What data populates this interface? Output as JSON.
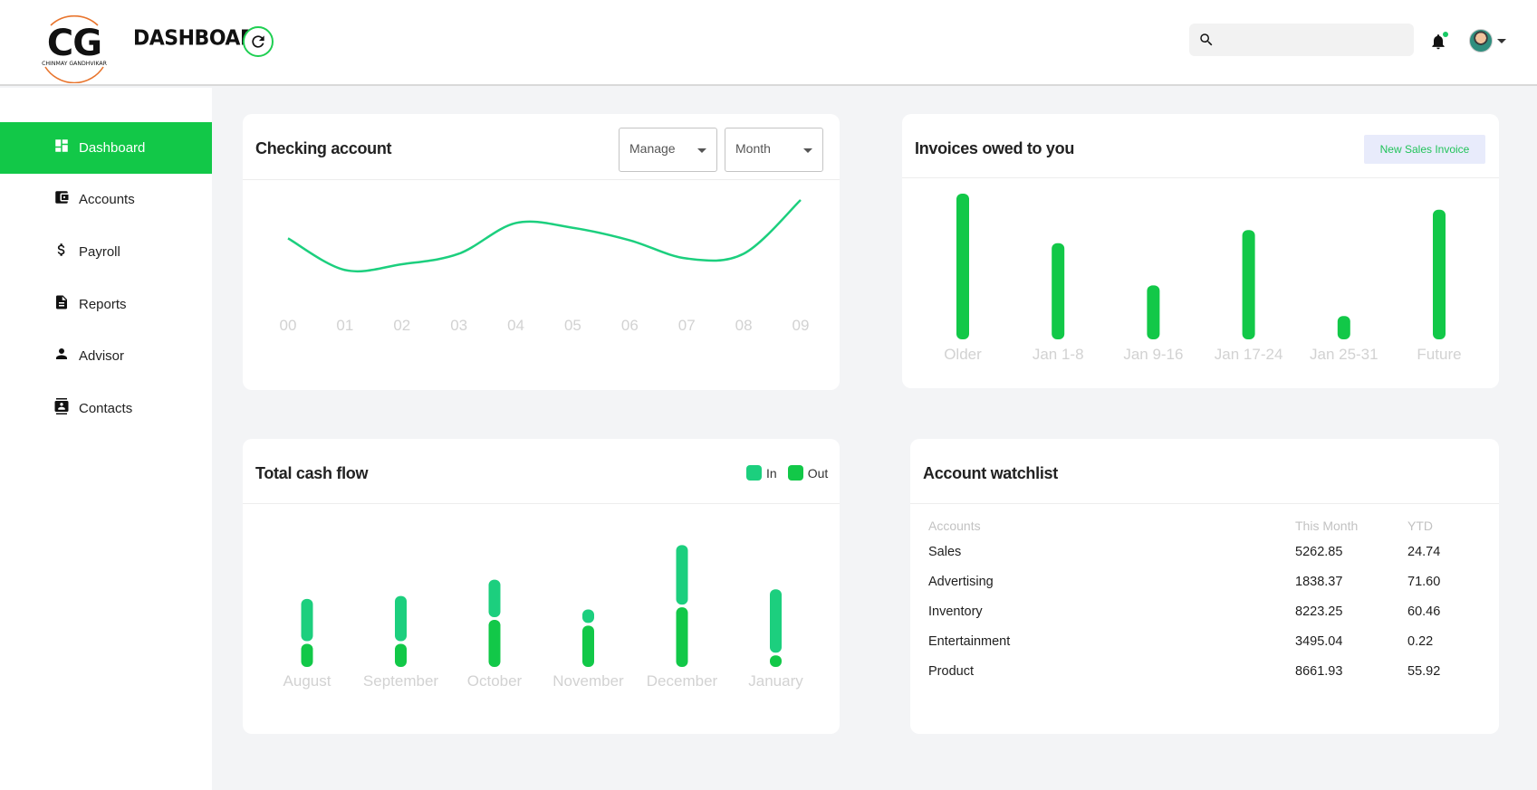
{
  "header": {
    "logo_initials": "CG",
    "logo_name": "CHINMAY GANDHVIKAR",
    "title": "DASHBOARD",
    "search_placeholder": ""
  },
  "sidebar": {
    "items": [
      {
        "label": "Dashboard",
        "icon": "dashboard-icon",
        "active": true
      },
      {
        "label": "Accounts",
        "icon": "wallet-icon"
      },
      {
        "label": "Payroll",
        "icon": "dollar-icon"
      },
      {
        "label": "Reports",
        "icon": "document-icon"
      },
      {
        "label": "Advisor",
        "icon": "person-icon"
      },
      {
        "label": "Contacts",
        "icon": "contacts-icon"
      }
    ]
  },
  "checking": {
    "title": "Checking account",
    "manage_label": "Manage",
    "month_label": "Month"
  },
  "invoices": {
    "title": "Invoices owed to you",
    "button_label": "New Sales Invoice"
  },
  "cashflow": {
    "title": "Total cash flow",
    "legend_in": "In",
    "legend_out": "Out"
  },
  "watchlist": {
    "title": "Account watchlist",
    "headers": [
      "Accounts",
      "This Month",
      "YTD"
    ],
    "rows": [
      [
        "Sales",
        "5262.85",
        "24.74"
      ],
      [
        "Advertising",
        "1838.37",
        "71.60"
      ],
      [
        "Inventory",
        "8223.25",
        "60.46"
      ],
      [
        "Entertainment",
        "3495.04",
        "0.22"
      ],
      [
        "Product",
        "8661.93",
        "55.92"
      ]
    ]
  },
  "colors": {
    "accent": "#12c848",
    "line": "#1ccf7e",
    "in": "#1ccf7e",
    "out": "#12c848"
  },
  "chart_data": [
    {
      "type": "line",
      "categories": [
        "00",
        "01",
        "02",
        "03",
        "04",
        "05",
        "06",
        "07",
        "08",
        "09"
      ],
      "series": [
        {
          "values": [
            60,
            27,
            33,
            44,
            76,
            71,
            58,
            39,
            44,
            100
          ]
        }
      ],
      "ylim": [
        0,
        100
      ],
      "grid": false
    },
    {
      "type": "bar",
      "categories": [
        "Older",
        "Jan 1-8",
        "Jan 9-16",
        "Jan 17-24",
        "Jan 25-31",
        "Future"
      ],
      "values": [
        100,
        66,
        37,
        75,
        16,
        89
      ],
      "ylim": [
        0,
        100
      ],
      "grid": false
    },
    {
      "type": "bar",
      "categories": [
        "August",
        "September",
        "October",
        "November",
        "December",
        "January"
      ],
      "series": [
        {
          "name": "In",
          "values": [
            44,
            47,
            39,
            14,
            62,
            66
          ]
        },
        {
          "name": "Out",
          "values": [
            24,
            24,
            49,
            43,
            62,
            12
          ]
        }
      ],
      "stacked": true,
      "ylim": [
        0,
        130
      ],
      "grid": false
    }
  ]
}
